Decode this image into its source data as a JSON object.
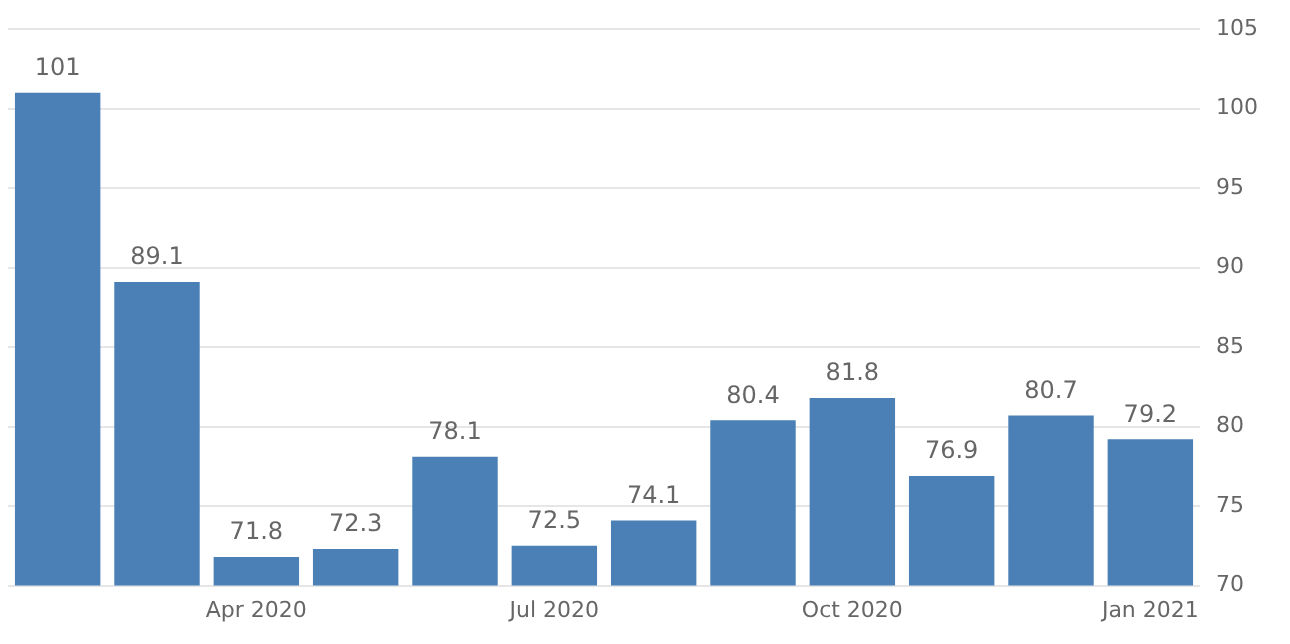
{
  "chart_data": {
    "type": "bar",
    "categories": [
      null,
      null,
      "Apr 2020",
      null,
      null,
      "Jul 2020",
      null,
      null,
      "Oct 2020",
      null,
      null,
      "Jan 2021"
    ],
    "values": [
      101,
      89.1,
      71.8,
      72.3,
      78.1,
      72.5,
      74.1,
      80.4,
      81.8,
      76.9,
      80.7,
      79.2
    ],
    "color": "#4a80b5",
    "ylim": [
      70,
      105
    ],
    "yticks": [
      70,
      75,
      80,
      85,
      90,
      95,
      100,
      105
    ],
    "grid": "y",
    "data_labels": true,
    "legend": false
  }
}
